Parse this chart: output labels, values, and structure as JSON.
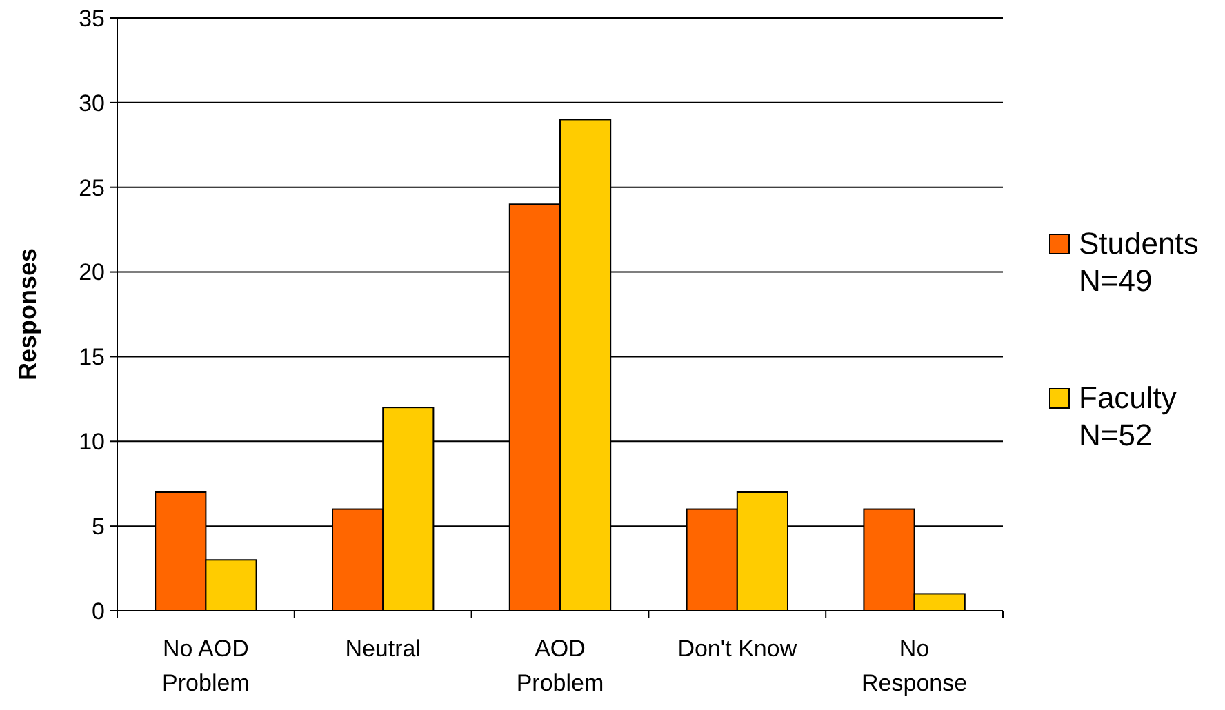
{
  "chart_data": {
    "type": "bar",
    "ylabel": "Responses",
    "categories": [
      "No AOD\nProblem",
      "Neutral",
      "AOD\nProblem",
      "Don't Know",
      "No\nResponse"
    ],
    "series": [
      {
        "name": "Students\nN=49",
        "color": "#ff6600",
        "values": [
          7,
          6,
          24,
          6,
          6
        ]
      },
      {
        "name": "Faculty\nN=52",
        "color": "#ffcc00",
        "values": [
          3,
          12,
          29,
          7,
          1
        ]
      }
    ],
    "ylim": [
      0,
      35
    ],
    "yticks": [
      0,
      5,
      10,
      15,
      20,
      25,
      30,
      35
    ],
    "grid": "y",
    "legend": "right"
  }
}
